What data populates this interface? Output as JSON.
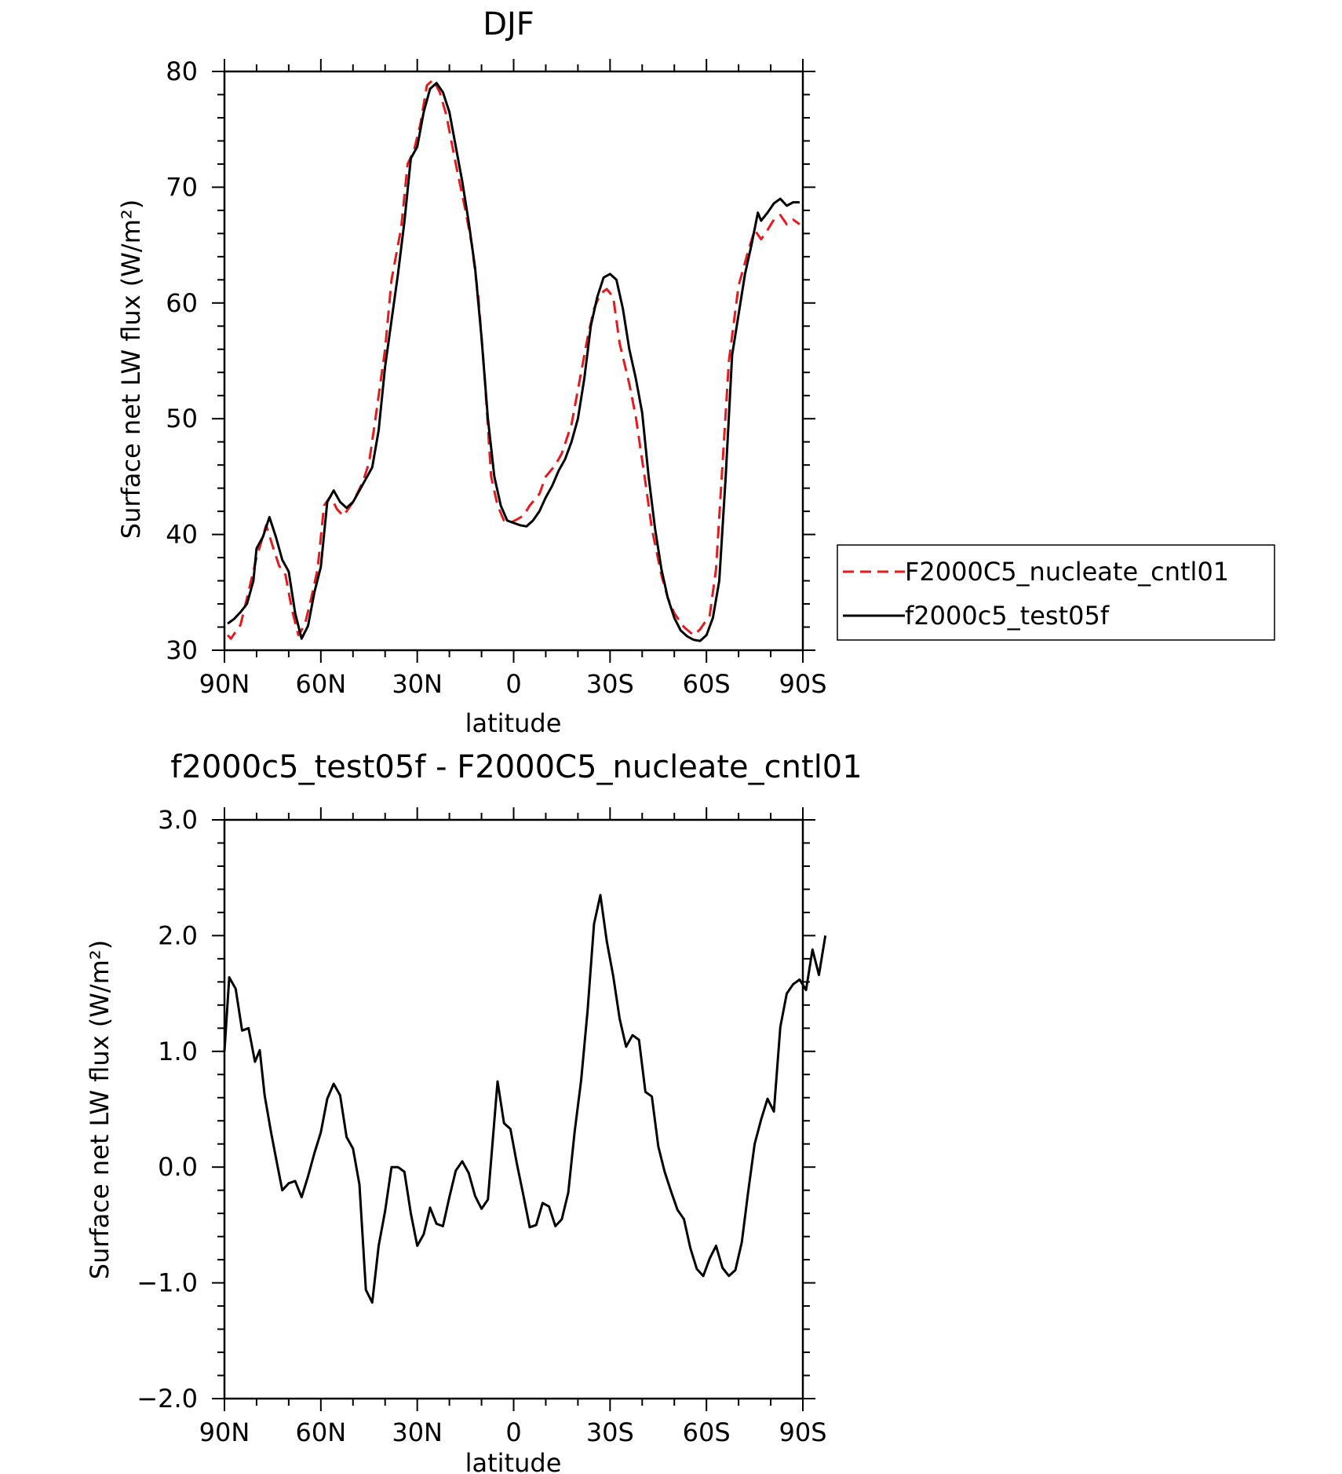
{
  "chart_data": [
    {
      "type": "line",
      "title": "DJF",
      "xlabel": "latitude",
      "ylabel": "Surface net LW flux (W/m²)",
      "xlim": [
        90,
        -90
      ],
      "ylim": [
        30,
        80
      ],
      "x_tick_labels": [
        "90N",
        "60N",
        "30N",
        "0",
        "30S",
        "60S",
        "90S"
      ],
      "y_tick_labels": [
        "30",
        "40",
        "50",
        "60",
        "70",
        "80"
      ],
      "grid": false,
      "legend_position": "right",
      "series": [
        {
          "name": "F2000C5_nucleate_cntl01",
          "color": "#e41a1c",
          "dash": "dashed",
          "points": [
            [
              89,
              31.3
            ],
            [
              88,
              31.0
            ],
            [
              85,
              32.2
            ],
            [
              83,
              34.5
            ],
            [
              80,
              38.0
            ],
            [
              77,
              40.8
            ],
            [
              75,
              39.0
            ],
            [
              73,
              37.3
            ],
            [
              71,
              36.5
            ],
            [
              69,
              33.5
            ],
            [
              67,
              31.3
            ],
            [
              65,
              32.2
            ],
            [
              63,
              34.5
            ],
            [
              61,
              37.0
            ],
            [
              59,
              42.5
            ],
            [
              57,
              43.3
            ],
            [
              55,
              42.2
            ],
            [
              53,
              41.6
            ],
            [
              50,
              42.8
            ],
            [
              47,
              44.5
            ],
            [
              45,
              46.2
            ],
            [
              43,
              50.0
            ],
            [
              40,
              56.0
            ],
            [
              38,
              62.0
            ],
            [
              35,
              66.5
            ],
            [
              33,
              72.0
            ],
            [
              31,
              73.2
            ],
            [
              29,
              75.5
            ],
            [
              27,
              78.8
            ],
            [
              25,
              79.3
            ],
            [
              23,
              78.2
            ],
            [
              21,
              76.3
            ],
            [
              18,
              72.0
            ],
            [
              15,
              68.0
            ],
            [
              13,
              65.0
            ],
            [
              11,
              60.5
            ],
            [
              9,
              53.5
            ],
            [
              7,
              45.0
            ],
            [
              5,
              42.5
            ],
            [
              3,
              41.2
            ],
            [
              1,
              41.0
            ],
            [
              -1,
              41.3
            ],
            [
              -3,
              41.6
            ],
            [
              -5,
              42.5
            ],
            [
              -8,
              43.5
            ],
            [
              -10,
              45.0
            ],
            [
              -13,
              46.0
            ],
            [
              -15,
              47.0
            ],
            [
              -18,
              49.5
            ],
            [
              -20,
              52.5
            ],
            [
              -23,
              57.0
            ],
            [
              -25,
              59.5
            ],
            [
              -27,
              60.8
            ],
            [
              -29,
              61.2
            ],
            [
              -31,
              60.5
            ],
            [
              -33,
              56.5
            ],
            [
              -36,
              53.0
            ],
            [
              -38,
              50.2
            ],
            [
              -41,
              44.5
            ],
            [
              -43,
              40.5
            ],
            [
              -46,
              36.5
            ],
            [
              -48,
              34.5
            ],
            [
              -50,
              33.2
            ],
            [
              -53,
              32.0
            ],
            [
              -56,
              31.3
            ],
            [
              -58,
              31.8
            ],
            [
              -61,
              33.0
            ],
            [
              -63,
              37.0
            ],
            [
              -65,
              46.0
            ],
            [
              -67,
              55.0
            ],
            [
              -70,
              61.5
            ],
            [
              -73,
              64.5
            ],
            [
              -75,
              66.3
            ],
            [
              -77,
              65.5
            ],
            [
              -79,
              66.3
            ],
            [
              -81,
              67.2
            ],
            [
              -83,
              67.6
            ],
            [
              -85,
              66.8
            ],
            [
              -87,
              67.2
            ],
            [
              -89,
              66.8
            ]
          ]
        },
        {
          "name": "f2000c5_test05f",
          "color": "#000000",
          "dash": "solid",
          "points": [
            [
              89,
              32.3
            ],
            [
              87,
              32.7
            ],
            [
              85,
              33.3
            ],
            [
              83,
              34.0
            ],
            [
              81,
              36.0
            ],
            [
              80,
              38.8
            ],
            [
              78,
              39.8
            ],
            [
              76,
              41.5
            ],
            [
              74,
              39.8
            ],
            [
              72,
              37.8
            ],
            [
              70,
              36.8
            ],
            [
              68,
              33.2
            ],
            [
              66,
              31.0
            ],
            [
              64,
              32.1
            ],
            [
              62,
              35.0
            ],
            [
              60,
              37.2
            ],
            [
              58,
              42.8
            ],
            [
              56,
              43.8
            ],
            [
              54,
              42.8
            ],
            [
              52,
              42.3
            ],
            [
              50,
              42.8
            ],
            [
              48,
              43.8
            ],
            [
              46,
              44.8
            ],
            [
              44,
              45.8
            ],
            [
              42,
              49.0
            ],
            [
              40,
              54.5
            ],
            [
              38,
              58.5
            ],
            [
              36,
              62.5
            ],
            [
              34,
              67.0
            ],
            [
              32,
              72.5
            ],
            [
              30,
              73.5
            ],
            [
              28,
              76.5
            ],
            [
              26,
              78.5
            ],
            [
              24,
              79.0
            ],
            [
              22,
              78.2
            ],
            [
              20,
              76.5
            ],
            [
              18,
              73.5
            ],
            [
              16,
              70.5
            ],
            [
              14,
              67.0
            ],
            [
              12,
              63.0
            ],
            [
              10,
              57.0
            ],
            [
              8,
              50.0
            ],
            [
              6,
              45.0
            ],
            [
              4,
              42.5
            ],
            [
              2,
              41.2
            ],
            [
              0,
              41.0
            ],
            [
              -2,
              40.8
            ],
            [
              -4,
              40.7
            ],
            [
              -6,
              41.2
            ],
            [
              -8,
              42.0
            ],
            [
              -10,
              43.2
            ],
            [
              -12,
              44.2
            ],
            [
              -14,
              45.5
            ],
            [
              -16,
              46.5
            ],
            [
              -18,
              48.0
            ],
            [
              -20,
              50.0
            ],
            [
              -22,
              53.5
            ],
            [
              -24,
              58.0
            ],
            [
              -26,
              60.5
            ],
            [
              -28,
              62.2
            ],
            [
              -30,
              62.5
            ],
            [
              -32,
              62.0
            ],
            [
              -34,
              59.5
            ],
            [
              -36,
              56.0
            ],
            [
              -38,
              53.5
            ],
            [
              -40,
              50.5
            ],
            [
              -42,
              45.0
            ],
            [
              -44,
              40.5
            ],
            [
              -46,
              37.0
            ],
            [
              -48,
              34.5
            ],
            [
              -50,
              32.8
            ],
            [
              -52,
              31.7
            ],
            [
              -54,
              31.2
            ],
            [
              -56,
              30.9
            ],
            [
              -58,
              30.8
            ],
            [
              -60,
              31.3
            ],
            [
              -62,
              32.8
            ],
            [
              -64,
              36.0
            ],
            [
              -66,
              45.0
            ],
            [
              -68,
              55.5
            ],
            [
              -70,
              59.0
            ],
            [
              -72,
              62.5
            ],
            [
              -74,
              65.0
            ],
            [
              -76,
              67.8
            ],
            [
              -77,
              67.1
            ],
            [
              -79,
              67.8
            ],
            [
              -81,
              68.6
            ],
            [
              -83,
              69.0
            ],
            [
              -85,
              68.4
            ],
            [
              -87,
              68.7
            ],
            [
              -89,
              68.7
            ]
          ]
        }
      ]
    },
    {
      "type": "line",
      "title": "f2000c5_test05f - F2000C5_nucleate_cntl01",
      "xlabel": "latitude",
      "ylabel": "Surface net LW flux (W/m²)",
      "xlim": [
        90,
        -90
      ],
      "ylim": [
        -2,
        3
      ],
      "x_tick_labels": [
        "90N",
        "60N",
        "30N",
        "0",
        "30S",
        "60S",
        "90S"
      ],
      "y_tick_labels": [
        "3.0",
        "2.0",
        "1.0",
        "0.0",
        "−1.0",
        "−2.0"
      ],
      "grid": false,
      "series": [
        {
          "color": "#000000",
          "dash": "solid",
          "points": [
            [
              90,
              1.0
            ],
            [
              88.5,
              1.64
            ],
            [
              86.5,
              1.54
            ],
            [
              84.5,
              1.18
            ],
            [
              82.5,
              1.2
            ],
            [
              80.5,
              0.91
            ],
            [
              79,
              1.01
            ],
            [
              77.5,
              0.62
            ],
            [
              75.5,
              0.3
            ],
            [
              73.5,
              0.01
            ],
            [
              72,
              -0.2
            ],
            [
              70,
              -0.14
            ],
            [
              68,
              -0.12
            ],
            [
              66,
              -0.26
            ],
            [
              64,
              -0.08
            ],
            [
              62,
              0.12
            ],
            [
              60,
              0.3
            ],
            [
              58,
              0.59
            ],
            [
              56,
              0.72
            ],
            [
              54,
              0.62
            ],
            [
              52,
              0.26
            ],
            [
              50,
              0.16
            ],
            [
              48,
              -0.15
            ],
            [
              46,
              -1.06
            ],
            [
              44,
              -1.17
            ],
            [
              42,
              -0.68
            ],
            [
              40,
              -0.38
            ],
            [
              38,
              0.0
            ],
            [
              36,
              0.0
            ],
            [
              34,
              -0.04
            ],
            [
              32,
              -0.4
            ],
            [
              30,
              -0.68
            ],
            [
              28,
              -0.58
            ],
            [
              26,
              -0.35
            ],
            [
              24,
              -0.49
            ],
            [
              22,
              -0.51
            ],
            [
              20,
              -0.26
            ],
            [
              18,
              -0.03
            ],
            [
              16,
              0.05
            ],
            [
              14,
              -0.05
            ],
            [
              12,
              -0.25
            ],
            [
              10,
              -0.36
            ],
            [
              8,
              -0.28
            ],
            [
              6,
              0.4
            ],
            [
              5,
              0.74
            ],
            [
              3,
              0.38
            ],
            [
              1,
              0.33
            ],
            [
              -1,
              0.03
            ],
            [
              -3,
              -0.24
            ],
            [
              -5,
              -0.52
            ],
            [
              -7,
              -0.5
            ],
            [
              -9,
              -0.31
            ],
            [
              -11,
              -0.34
            ],
            [
              -13,
              -0.51
            ],
            [
              -15,
              -0.45
            ],
            [
              -17,
              -0.22
            ],
            [
              -19,
              0.31
            ],
            [
              -21,
              0.75
            ],
            [
              -23,
              1.35
            ],
            [
              -25,
              2.1
            ],
            [
              -27,
              2.35
            ],
            [
              -29,
              1.95
            ],
            [
              -31,
              1.65
            ],
            [
              -33,
              1.28
            ],
            [
              -35,
              1.04
            ],
            [
              -37,
              1.14
            ],
            [
              -39,
              1.1
            ],
            [
              -41,
              0.65
            ],
            [
              -43,
              0.61
            ],
            [
              -45,
              0.18
            ],
            [
              -47,
              -0.04
            ],
            [
              -49,
              -0.21
            ],
            [
              -51,
              -0.37
            ],
            [
              -53,
              -0.45
            ],
            [
              -55,
              -0.7
            ],
            [
              -57,
              -0.88
            ],
            [
              -59,
              -0.94
            ],
            [
              -61,
              -0.79
            ],
            [
              -63,
              -0.68
            ],
            [
              -65,
              -0.87
            ],
            [
              -67,
              -0.94
            ],
            [
              -69,
              -0.89
            ],
            [
              -71,
              -0.65
            ],
            [
              -73,
              -0.21
            ],
            [
              -75,
              0.2
            ],
            [
              -77,
              0.41
            ],
            [
              -79,
              0.59
            ],
            [
              -81,
              0.48
            ],
            [
              -83,
              1.21
            ],
            [
              -85,
              1.5
            ],
            [
              -87,
              1.58
            ],
            [
              -89,
              1.62
            ],
            [
              -91,
              1.53
            ],
            [
              -93,
              1.88
            ],
            [
              -95,
              1.66
            ],
            [
              -97,
              2.0
            ]
          ]
        }
      ]
    }
  ]
}
